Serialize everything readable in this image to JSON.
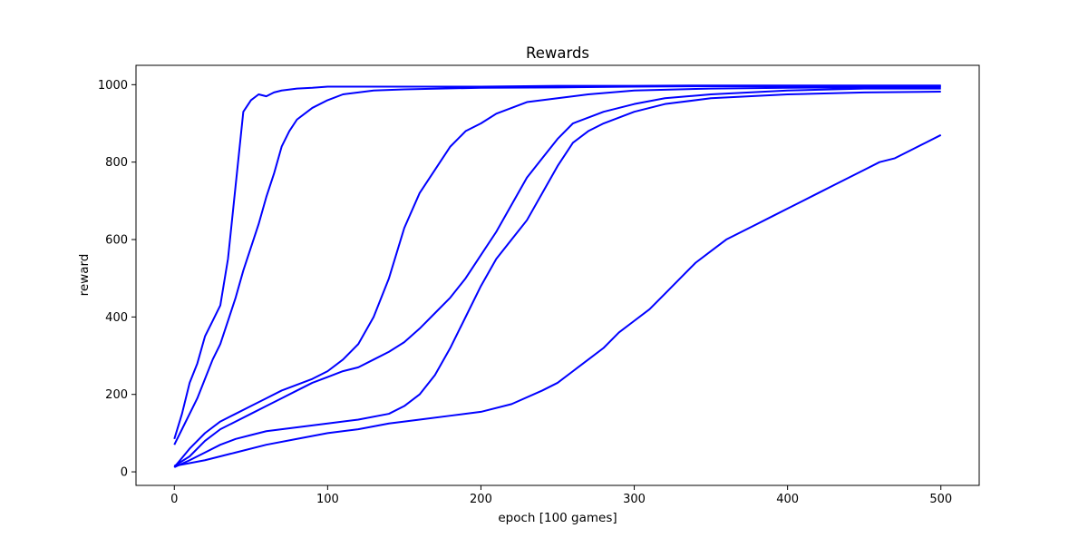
{
  "chart_data": {
    "type": "line",
    "title": "Rewards",
    "xlabel": "epoch [100 games]",
    "ylabel": "reward",
    "xlim": [
      -25,
      525
    ],
    "ylim": [
      -35,
      1050
    ],
    "xticks": [
      0,
      100,
      200,
      300,
      400,
      500
    ],
    "yticks": [
      0,
      200,
      400,
      600,
      800,
      1000
    ],
    "grid": false,
    "legend": "none",
    "line_color": "#0000ff",
    "series": [
      {
        "x": [
          0,
          5,
          10,
          15,
          20,
          25,
          30,
          35,
          40,
          45,
          50,
          55,
          60,
          65,
          70,
          80,
          90,
          100,
          150,
          200,
          250,
          300,
          350,
          400,
          450,
          500
        ],
        "values": [
          85,
          150,
          230,
          280,
          350,
          390,
          430,
          550,
          740,
          930,
          960,
          975,
          970,
          980,
          985,
          990,
          992,
          995,
          995,
          995,
          997,
          997,
          998,
          998,
          998,
          998
        ]
      },
      {
        "x": [
          0,
          5,
          10,
          15,
          20,
          25,
          30,
          35,
          40,
          45,
          50,
          55,
          60,
          65,
          70,
          75,
          80,
          90,
          100,
          110,
          120,
          130,
          150,
          200,
          250,
          300,
          350,
          400,
          450,
          500
        ],
        "values": [
          70,
          110,
          150,
          190,
          240,
          290,
          330,
          390,
          450,
          520,
          580,
          640,
          710,
          770,
          840,
          880,
          910,
          940,
          960,
          975,
          980,
          985,
          988,
          992,
          993,
          995,
          996,
          996,
          996,
          996
        ]
      },
      {
        "x": [
          0,
          10,
          20,
          30,
          40,
          50,
          60,
          70,
          80,
          90,
          100,
          110,
          120,
          130,
          140,
          150,
          160,
          170,
          180,
          190,
          200,
          210,
          220,
          230,
          250,
          270,
          300,
          350,
          400,
          450,
          500
        ],
        "values": [
          12,
          60,
          100,
          130,
          150,
          170,
          190,
          210,
          225,
          240,
          260,
          290,
          330,
          400,
          500,
          630,
          720,
          780,
          840,
          880,
          900,
          925,
          940,
          955,
          965,
          975,
          985,
          990,
          992,
          993,
          993
        ]
      },
      {
        "x": [
          0,
          10,
          20,
          30,
          40,
          50,
          60,
          70,
          80,
          90,
          100,
          110,
          120,
          130,
          140,
          150,
          160,
          170,
          180,
          190,
          200,
          210,
          220,
          230,
          240,
          250,
          260,
          280,
          300,
          320,
          350,
          400,
          450,
          500
        ],
        "values": [
          15,
          40,
          80,
          110,
          130,
          150,
          170,
          190,
          210,
          230,
          245,
          260,
          270,
          290,
          310,
          335,
          370,
          410,
          450,
          500,
          560,
          620,
          690,
          760,
          810,
          860,
          900,
          930,
          950,
          965,
          975,
          985,
          990,
          990
        ]
      },
      {
        "x": [
          0,
          10,
          20,
          30,
          40,
          50,
          60,
          80,
          100,
          120,
          140,
          150,
          160,
          170,
          180,
          190,
          200,
          210,
          220,
          230,
          240,
          250,
          260,
          270,
          280,
          300,
          320,
          350,
          400,
          450,
          500
        ],
        "values": [
          12,
          30,
          50,
          70,
          85,
          95,
          105,
          115,
          125,
          135,
          150,
          170,
          200,
          250,
          320,
          400,
          480,
          550,
          600,
          650,
          720,
          790,
          850,
          880,
          900,
          930,
          950,
          965,
          975,
          980,
          982
        ]
      },
      {
        "x": [
          0,
          20,
          40,
          60,
          80,
          100,
          120,
          140,
          160,
          180,
          200,
          220,
          240,
          250,
          260,
          270,
          280,
          290,
          300,
          310,
          320,
          330,
          340,
          350,
          360,
          370,
          380,
          390,
          400,
          410,
          420,
          430,
          440,
          450,
          460,
          470,
          480,
          490,
          500
        ],
        "values": [
          15,
          30,
          50,
          70,
          85,
          100,
          110,
          125,
          135,
          145,
          155,
          175,
          210,
          230,
          260,
          290,
          320,
          360,
          390,
          420,
          460,
          500,
          540,
          570,
          600,
          620,
          640,
          660,
          680,
          700,
          720,
          740,
          760,
          780,
          800,
          810,
          830,
          850,
          870
        ]
      }
    ]
  }
}
